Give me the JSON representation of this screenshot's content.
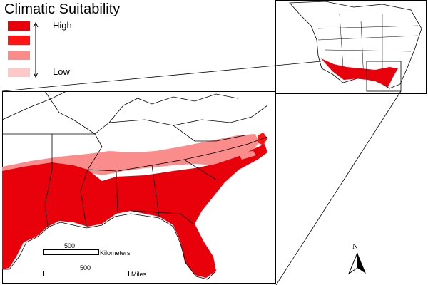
{
  "legend": {
    "title": "Climatic Suitability",
    "high_label": "High",
    "low_label": "Low",
    "classes": [
      {
        "rank": 1,
        "color": "#e8000b"
      },
      {
        "rank": 2,
        "color": "#ff1414"
      },
      {
        "rank": 3,
        "color": "#fa8c8c"
      },
      {
        "rank": 4,
        "color": "#fcc8c8"
      }
    ]
  },
  "scalebar": {
    "km_value": "500",
    "km_unit": "Kilometers",
    "mi_value": "500",
    "mi_unit": "Miles"
  },
  "north_arrow": {
    "label": "N"
  },
  "colors": {
    "land": "#ffffff",
    "border": "#000000",
    "suit_high": "#e8000b",
    "suit_med": "#ff1414",
    "suit_low": "#fa8c8c"
  }
}
